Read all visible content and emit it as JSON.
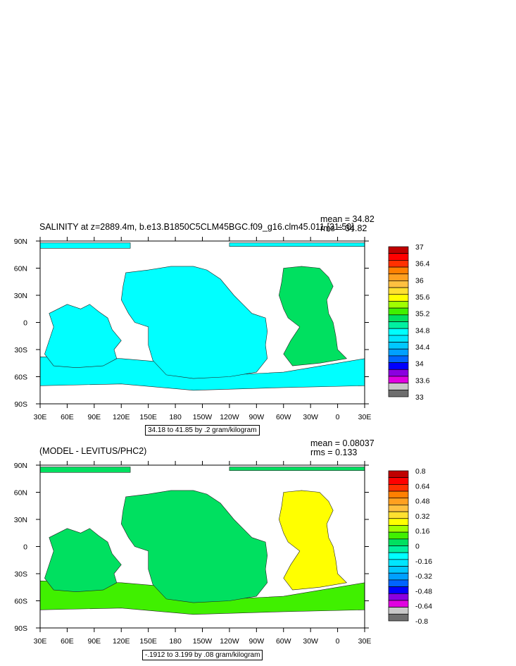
{
  "panels": [
    {
      "title": "SALINITY at z=2889.4m, b.e13.B1850C5CLM45BGC.f09_g16.clm45.011 [31:50]",
      "stats": [
        "mean = 34.82",
        "rms = 34.82"
      ],
      "subtitle": "34.18 to 41.85 by .2 gram/kilogram",
      "colorbar_labels": [
        "37",
        "36.4",
        "36",
        "35.6",
        "35.2",
        "34.8",
        "34.4",
        "34",
        "33.6",
        "33"
      ]
    },
    {
      "title": "(MODEL - LEVITUS/PHC2)",
      "stats": [
        "mean = 0.08037",
        "rms = 0.133"
      ],
      "subtitle": "-.1912 to 3.199 by .08 gram/kilogram",
      "colorbar_labels": [
        "0.8",
        "0.64",
        "0.48",
        "0.32",
        "0.16",
        "0",
        "-0.16",
        "-0.32",
        "-0.48",
        "-0.64",
        "-0.8"
      ]
    }
  ],
  "chart_data": [
    {
      "type": "heatmap",
      "title": "SALINITY at z=2889.4m, b.e13.B1850C5CLM45BGC.f09_g16.clm45.011 [31:50]",
      "x_ticks": [
        "30E",
        "60E",
        "90E",
        "120E",
        "150E",
        "180",
        "150W",
        "120W",
        "90W",
        "60W",
        "30W",
        "0",
        "30E"
      ],
      "y_ticks": [
        "90N",
        "60N",
        "30N",
        "0",
        "30S",
        "60S",
        "90S"
      ],
      "xlim": [
        30,
        390
      ],
      "ylim": [
        -90,
        90
      ],
      "mean": 34.82,
      "rms": 34.82,
      "contour_range": "34.18 to 41.85 by .2 gram/kilogram",
      "colorbar": {
        "levels": [
          33,
          33.2,
          33.4,
          33.6,
          33.8,
          34,
          34.2,
          34.4,
          34.6,
          34.8,
          35,
          35.2,
          35.4,
          35.6,
          35.8,
          36,
          36.2,
          36.4,
          36.6,
          36.8,
          37
        ],
        "colors": [
          "#6e6e6e",
          "#c8c8c8",
          "#e000e0",
          "#8a00e0",
          "#0000ff",
          "#0064ff",
          "#00a0ff",
          "#00c8ff",
          "#00e6ff",
          "#00ffff",
          "#00f0a0",
          "#00e060",
          "#40f000",
          "#a0ff00",
          "#ffff00",
          "#ffe030",
          "#ffc040",
          "#ffa020",
          "#ff8000",
          "#ff3000",
          "#ff0000",
          "#c00000"
        ]
      }
    },
    {
      "type": "heatmap",
      "title": "(MODEL - LEVITUS/PHC2)",
      "x_ticks": [
        "30E",
        "60E",
        "90E",
        "120E",
        "150E",
        "180",
        "150W",
        "120W",
        "90W",
        "60W",
        "30W",
        "0",
        "30E"
      ],
      "y_ticks": [
        "90N",
        "60N",
        "30N",
        "0",
        "30S",
        "60S",
        "90S"
      ],
      "xlim": [
        30,
        390
      ],
      "ylim": [
        -90,
        90
      ],
      "mean": 0.08037,
      "rms": 0.133,
      "contour_range": "-.1912 to 3.199 by .08 gram/kilogram",
      "colorbar": {
        "levels": [
          -0.8,
          -0.72,
          -0.64,
          -0.56,
          -0.48,
          -0.4,
          -0.32,
          -0.24,
          -0.16,
          -0.08,
          0,
          0.08,
          0.16,
          0.24,
          0.32,
          0.4,
          0.48,
          0.56,
          0.64,
          0.72,
          0.8
        ],
        "colors": [
          "#6e6e6e",
          "#c8c8c8",
          "#e000e0",
          "#8a00e0",
          "#0000ff",
          "#0064ff",
          "#00a0ff",
          "#00c8ff",
          "#00e6ff",
          "#00ffff",
          "#00f0a0",
          "#00e060",
          "#40f000",
          "#a0ff00",
          "#ffff00",
          "#ffe030",
          "#ffc040",
          "#ffa020",
          "#ff8000",
          "#ff3000",
          "#ff0000",
          "#c00000"
        ]
      }
    }
  ]
}
